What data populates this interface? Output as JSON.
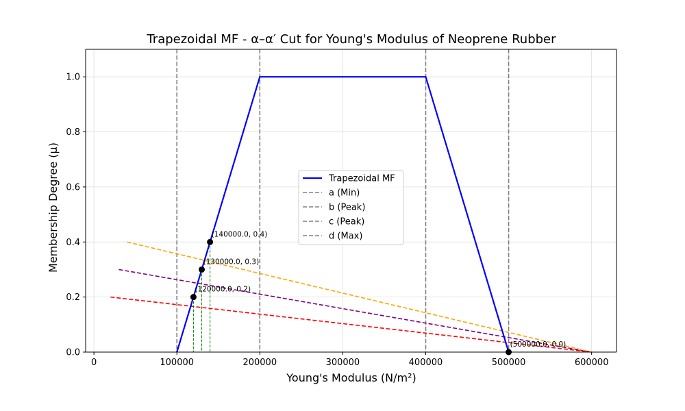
{
  "chart_data": {
    "type": "line",
    "title": "Trapezoidal MF - α–α′ Cut for Young's Modulus of Neoprene Rubber",
    "xlabel": "Young's Modulus (N/m²)",
    "ylabel": "Membership Degree (μ)",
    "xlim": [
      -10000,
      630000
    ],
    "ylim": [
      0,
      1.1
    ],
    "xticks": [
      0,
      100000,
      200000,
      300000,
      400000,
      500000,
      600000
    ],
    "yticks": [
      0.0,
      0.2,
      0.4,
      0.6,
      0.8,
      1.0
    ],
    "xtick_labels": [
      "0",
      "100000",
      "200000",
      "300000",
      "400000",
      "500000",
      "600000"
    ],
    "ytick_labels": [
      "0.0",
      "0.2",
      "0.4",
      "0.6",
      "0.8",
      "1.0"
    ],
    "grid": true,
    "legend_position": "center",
    "trapezoid": {
      "name": "Trapezoidal MF",
      "color": "#0000ff",
      "x": [
        100000,
        200000,
        400000,
        500000
      ],
      "y": [
        0,
        1,
        1,
        0
      ]
    },
    "vertical_lines": [
      {
        "name": "a (Min)",
        "x": 100000,
        "color": "#808080"
      },
      {
        "name": "b (Peak)",
        "x": 200000,
        "color": "#808080"
      },
      {
        "name": "c (Peak)",
        "x": 400000,
        "color": "#808080"
      },
      {
        "name": "d (Max)",
        "x": 500000,
        "color": "#808080"
      }
    ],
    "cut_lines": [
      {
        "color": "#ff0000",
        "x": [
          20000,
          600000
        ],
        "y": [
          0.2,
          0
        ]
      },
      {
        "color": "#800080",
        "x": [
          30000,
          600000
        ],
        "y": [
          0.3,
          0
        ]
      },
      {
        "color": "#ffa500",
        "x": [
          40000,
          600000
        ],
        "y": [
          0.4,
          0
        ]
      }
    ],
    "drop_lines": [
      {
        "x": 120000,
        "y": 0.2,
        "color": "#008000"
      },
      {
        "x": 130000,
        "y": 0.3,
        "color": "#008000"
      },
      {
        "x": 140000,
        "y": 0.4,
        "color": "#008000"
      }
    ],
    "points": [
      {
        "x": 120000,
        "y": 0.2,
        "label": "(120000.0, 0.2)"
      },
      {
        "x": 130000,
        "y": 0.3,
        "label": "(130000.0, 0.3)"
      },
      {
        "x": 140000,
        "y": 0.4,
        "label": "(140000.0, 0.4)"
      },
      {
        "x": 500000,
        "y": 0.0,
        "label": "(500000.0, 0.0)"
      }
    ]
  }
}
